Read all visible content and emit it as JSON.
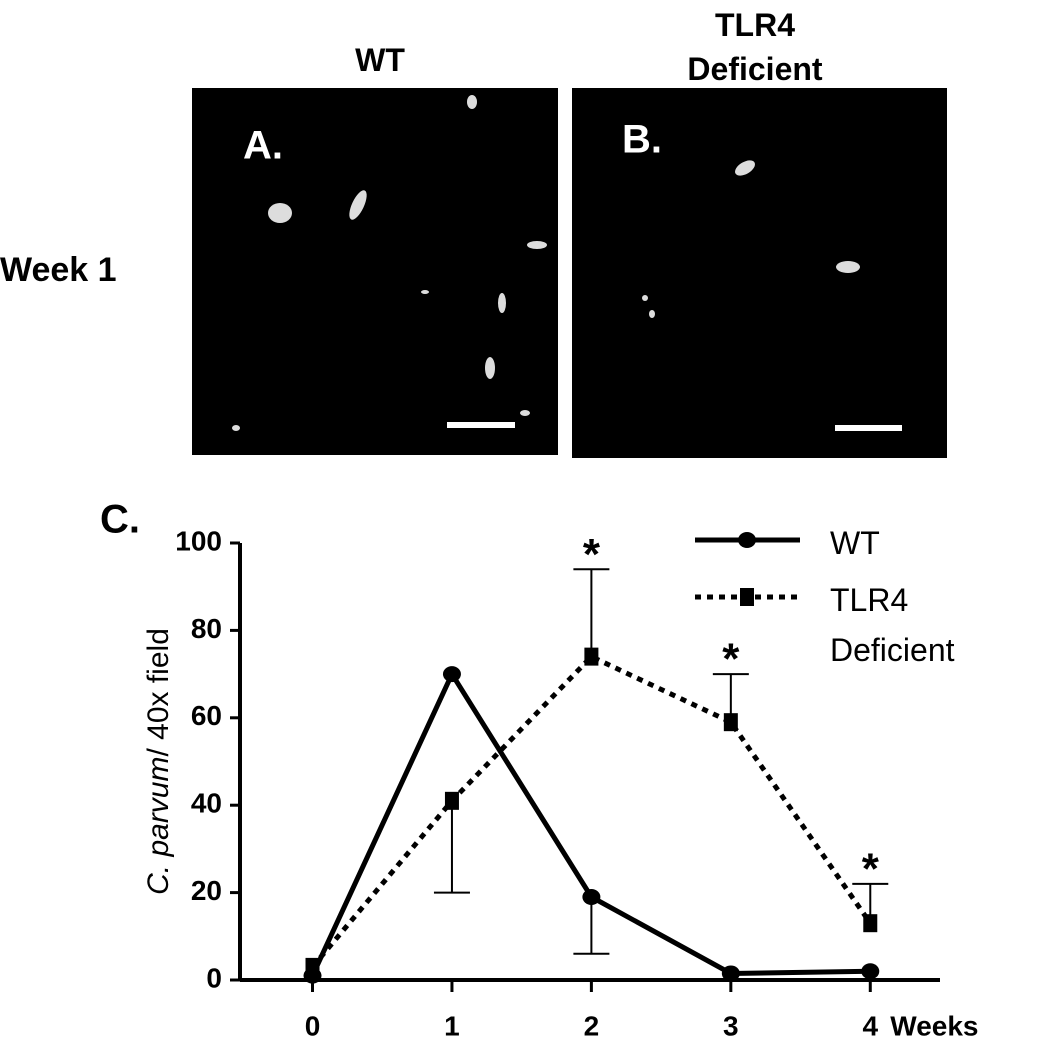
{
  "panels": [
    {
      "column_title": "WT",
      "label": "A."
    },
    {
      "column_title": "TLR4 Deficient",
      "label": "B."
    }
  ],
  "row_label": "Week 1",
  "chart_data": {
    "type": "line",
    "panel_label": "C.",
    "ylabel": [
      {
        "text": "C. parvum",
        "italic": true
      },
      {
        "text": "/ 40x field",
        "italic": false
      }
    ],
    "xlabel": "Weeks",
    "x": [
      0,
      1,
      2,
      3,
      4
    ],
    "series": [
      {
        "name": "WT",
        "color": "#000000",
        "dash": false,
        "marker": "circle",
        "values": [
          1,
          70,
          19,
          1.5,
          2
        ],
        "errors": [
          null,
          null,
          13,
          null,
          null
        ],
        "error_sides": [
          null,
          null,
          "down",
          null,
          null
        ]
      },
      {
        "name": "TLR4 Deficient",
        "color": "#000000",
        "dash": true,
        "marker": "square",
        "values": [
          3,
          41,
          74,
          59,
          13
        ],
        "errors": [
          null,
          21,
          20,
          11,
          9
        ],
        "error_sides": [
          null,
          "down",
          "up",
          "up",
          "up"
        ]
      }
    ],
    "annotations": [
      {
        "x": 2,
        "series": 1,
        "text": "*"
      },
      {
        "x": 3,
        "series": 1,
        "text": "*"
      },
      {
        "x": 4,
        "series": 1,
        "text": "*"
      }
    ],
    "xlim": [
      -0.52,
      4.5
    ],
    "xticks": [
      0,
      1,
      2,
      3,
      4
    ],
    "ylim": [
      0,
      100
    ],
    "yticks": [
      0,
      20,
      40,
      60,
      80,
      100
    ],
    "legend": "upper right"
  }
}
